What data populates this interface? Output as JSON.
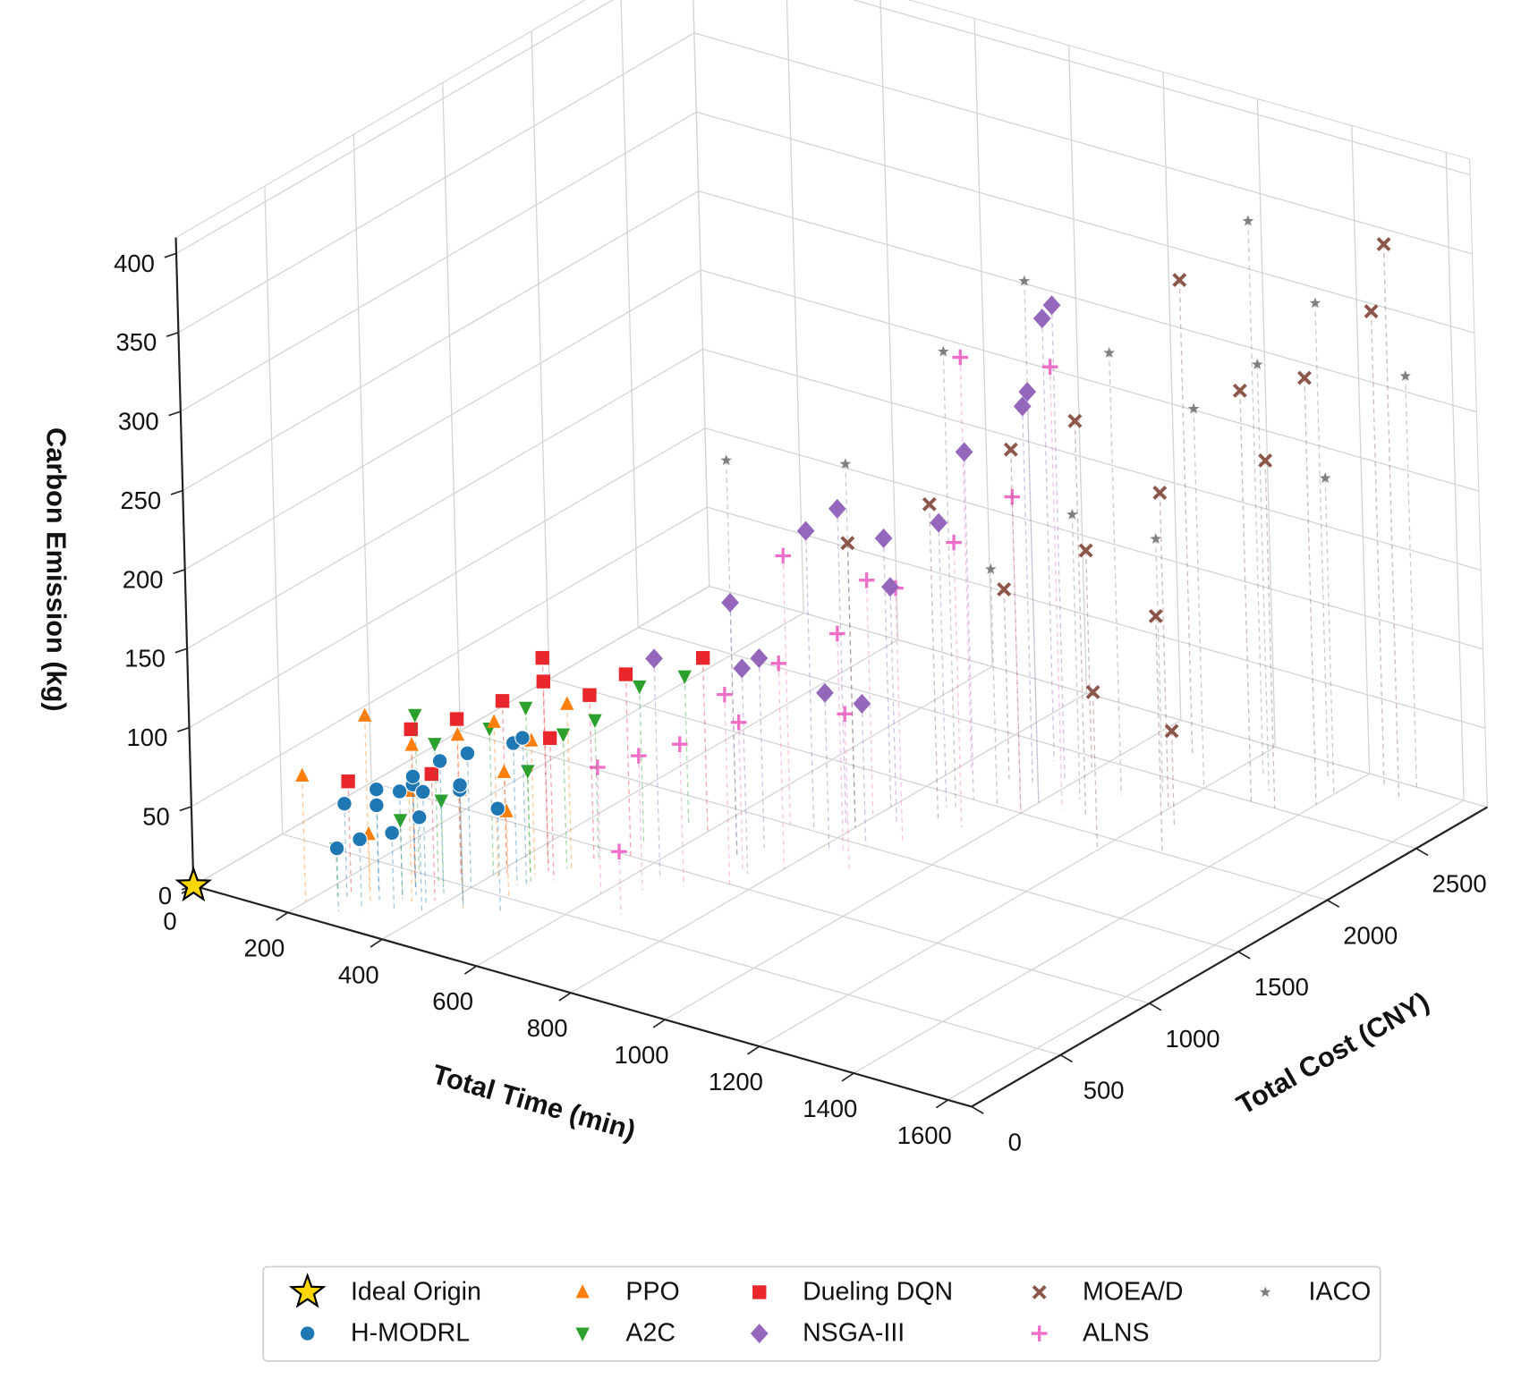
{
  "chart_data": {
    "type": "scatter3d",
    "xlabel": "Total Time (min)",
    "ylabel": "Total Cost (CNY)",
    "zlabel": "Carbon Emission (kg)",
    "xlim": [
      0,
      1650
    ],
    "ylim": [
      0,
      2900
    ],
    "zlim": [
      0,
      410
    ],
    "xticks": [
      0,
      200,
      400,
      600,
      800,
      1000,
      1200,
      1400,
      1600
    ],
    "yticks": [
      0,
      500,
      1000,
      1500,
      2000,
      2500
    ],
    "zticks": [
      0,
      50,
      100,
      150,
      200,
      250,
      300,
      350,
      400
    ],
    "grid": true,
    "legend": "below",
    "series": [
      {
        "name": "Ideal Origin",
        "color": "#ffd700",
        "marker": "star",
        "x": [
          0
        ],
        "y": [
          0
        ],
        "z": [
          0
        ]
      },
      {
        "name": "H-MODRL",
        "color": "#1f77b4",
        "marker": "circle",
        "x": [
          250,
          280,
          300,
          320,
          340,
          360,
          380,
          400,
          420,
          300,
          350,
          390,
          440,
          460,
          270,
          330,
          500,
          480
        ],
        "y": [
          200,
          300,
          250,
          400,
          350,
          450,
          300,
          500,
          400,
          150,
          200,
          250,
          350,
          600,
          100,
          300,
          400,
          600
        ],
        "z": [
          60,
          55,
          70,
          65,
          75,
          80,
          72,
          85,
          70,
          45,
          50,
          60,
          78,
          90,
          40,
          68,
          65,
          95
        ]
      },
      {
        "name": "PPO",
        "color": "#ff7f0e",
        "marker": "triangle-up",
        "x": [
          200,
          260,
          320,
          380,
          420,
          460,
          500,
          350,
          400,
          300,
          440,
          480
        ],
        "y": [
          100,
          300,
          400,
          500,
          600,
          700,
          800,
          300,
          700,
          200,
          350,
          500
        ],
        "z": [
          80,
          110,
          90,
          95,
          100,
          85,
          105,
          70,
          60,
          45,
          75,
          55
        ]
      },
      {
        "name": "A2C",
        "color": "#2ca02c",
        "marker": "triangle-down",
        "x": [
          230,
          290,
          350,
          410,
          450,
          490,
          520,
          540,
          380,
          330,
          470,
          560
        ],
        "y": [
          200,
          500,
          450,
          600,
          700,
          800,
          900,
          1100,
          400,
          300,
          650,
          1300
        ],
        "z": [
          30,
          100,
          90,
          95,
          105,
          85,
          90,
          100,
          60,
          50,
          70,
          95
        ]
      },
      {
        "name": "Dueling DQN",
        "color": "#e8262b",
        "marker": "square",
        "x": [
          240,
          300,
          360,
          420,
          470,
          510,
          550,
          600,
          380,
          450,
          500
        ],
        "y": [
          250,
          450,
          550,
          650,
          750,
          900,
          1000,
          1300,
          350,
          800,
          700
        ],
        "z": [
          70,
          95,
          100,
          110,
          120,
          105,
          115,
          110,
          80,
          130,
          90
        ]
      },
      {
        "name": "NSGA-III",
        "color": "#9467bd",
        "marker": "diamond",
        "x": [
          650,
          700,
          750,
          800,
          850,
          900,
          950,
          1000,
          720,
          780,
          880,
          820,
          920,
          980,
          760,
          860
        ],
        "y": [
          900,
          1200,
          1500,
          1800,
          1700,
          2000,
          2200,
          2100,
          1300,
          1600,
          1900,
          1400,
          2400,
          2300,
          1100,
          1500
        ],
        "z": [
          140,
          160,
          190,
          170,
          150,
          220,
          240,
          260,
          120,
          200,
          180,
          100,
          280,
          300,
          130,
          90
        ]
      },
      {
        "name": "MOEA/D",
        "color": "#8c564b",
        "marker": "x",
        "x": [
          800,
          900,
          1000,
          1100,
          1200,
          1300,
          1400,
          900,
          1000,
          1100,
          1200,
          1300,
          1500,
          1450,
          1350,
          1250
        ],
        "y": [
          1600,
          1800,
          2000,
          2100,
          2300,
          2500,
          2600,
          2200,
          2400,
          2700,
          1900,
          2000,
          2800,
          2850,
          2500,
          2200
        ],
        "z": [
          180,
          200,
          230,
          250,
          200,
          260,
          270,
          120,
          140,
          300,
          100,
          150,
          350,
          300,
          220,
          60
        ]
      },
      {
        "name": "ALNS",
        "color": "#f06ec8",
        "marker": "plus",
        "x": [
          600,
          650,
          700,
          750,
          800,
          850,
          900,
          950,
          1000,
          1050,
          700,
          800,
          900,
          760,
          680,
          820
        ],
        "y": [
          700,
          800,
          900,
          1100,
          1200,
          1400,
          1600,
          1800,
          2000,
          2100,
          1500,
          1700,
          1300,
          1000,
          600,
          2200
        ],
        "z": [
          80,
          85,
          90,
          95,
          130,
          140,
          160,
          180,
          200,
          280,
          170,
          150,
          100,
          120,
          40,
          260
        ]
      },
      {
        "name": "IACO",
        "color": "#7f7f7f",
        "marker": "small-star",
        "x": [
          700,
          800,
          900,
          1000,
          1100,
          1200,
          1300,
          1400,
          1500,
          950,
          1050,
          1150,
          1250,
          1350
        ],
        "y": [
          1200,
          1600,
          1900,
          2100,
          2300,
          2500,
          2600,
          2700,
          2900,
          2000,
          2200,
          2400,
          2700,
          2800
        ],
        "z": [
          250,
          230,
          290,
          330,
          280,
          240,
          270,
          200,
          260,
          150,
          180,
          160,
          350,
          300
        ]
      }
    ]
  }
}
